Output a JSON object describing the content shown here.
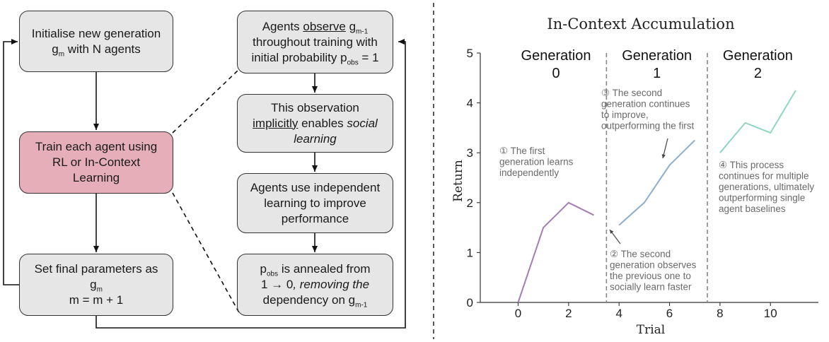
{
  "flow": {
    "init": {
      "l1": "Initialise new generation",
      "g": "g",
      "g_sub": "m",
      "l2_tail": " with N agents"
    },
    "train": {
      "l1": "Train each agent using",
      "l2": "RL or In-Context",
      "l3": "Learning",
      "color": "#e6aeb9"
    },
    "final": {
      "l1": "Set final parameters as",
      "g": "g",
      "g_sub": "m",
      "l3": "m = m + 1"
    }
  },
  "detail": {
    "observe": {
      "a": "Agents ",
      "b": "observe",
      "c": " g",
      "c_sub": "m-1",
      "l2": "throughout training with",
      "l3": "initial probability p",
      "l3_sub": "obs",
      "l3_tail": " = 1"
    },
    "social": {
      "l1": "This observation",
      "l2a": "implicitly",
      "l2b": " enables ",
      "l2c": "social",
      "l3": "learning"
    },
    "independent": {
      "l1": "Agents use independent",
      "l2": "learning to improve",
      "l3": "performance"
    },
    "anneal": {
      "p": "p",
      "p_sub": "obs",
      "l1_tail": " is annealed from",
      "l2a": "1 → 0",
      "l2b": ", removing the",
      "l3": "dependency on g",
      "l3_sub": "m-1"
    }
  },
  "chart_data": {
    "type": "line",
    "title": "In-Context Accumulation",
    "xlabel": "Trial",
    "ylabel": "Return",
    "xlim": [
      -1.5,
      11.9
    ],
    "ylim": [
      0,
      5
    ],
    "xticks": [
      0,
      2,
      4,
      6,
      8,
      10
    ],
    "yticks": [
      0,
      1,
      2,
      3,
      4,
      5
    ],
    "grid": false,
    "dividers": [
      3.5,
      7.5
    ],
    "generation_labels": [
      {
        "l1": "Generation",
        "l2": "0",
        "x": 1.5
      },
      {
        "l1": "Generation",
        "l2": "1",
        "x": 5.5
      },
      {
        "l1": "Generation",
        "l2": "2",
        "x": 9.5
      }
    ],
    "series": [
      {
        "x": [
          0,
          1,
          2,
          3
        ],
        "values": [
          0.0,
          1.5,
          2.0,
          1.75
        ],
        "color": "#a77bb8"
      },
      {
        "x": [
          4,
          5,
          6,
          7
        ],
        "values": [
          1.55,
          2.0,
          2.75,
          3.25
        ],
        "color": "#8aaecf"
      },
      {
        "x": [
          8,
          9,
          10,
          11
        ],
        "values": [
          3.0,
          3.6,
          3.4,
          4.25
        ],
        "color": "#8fd8bc"
      }
    ],
    "annotations": [
      {
        "lines": [
          "① The first",
          "generation learns",
          "independently"
        ]
      },
      {
        "lines": [
          "② The second",
          "generation observes",
          "the previous one to",
          "socially learn faster"
        ]
      },
      {
        "lines": [
          "③ The second",
          "generation continues",
          "to improve,",
          "outperforming the first"
        ]
      },
      {
        "lines": [
          "④ This process",
          "continues for multiple",
          "generations, ultimately",
          "outperforming single",
          "agent baselines"
        ]
      }
    ]
  }
}
